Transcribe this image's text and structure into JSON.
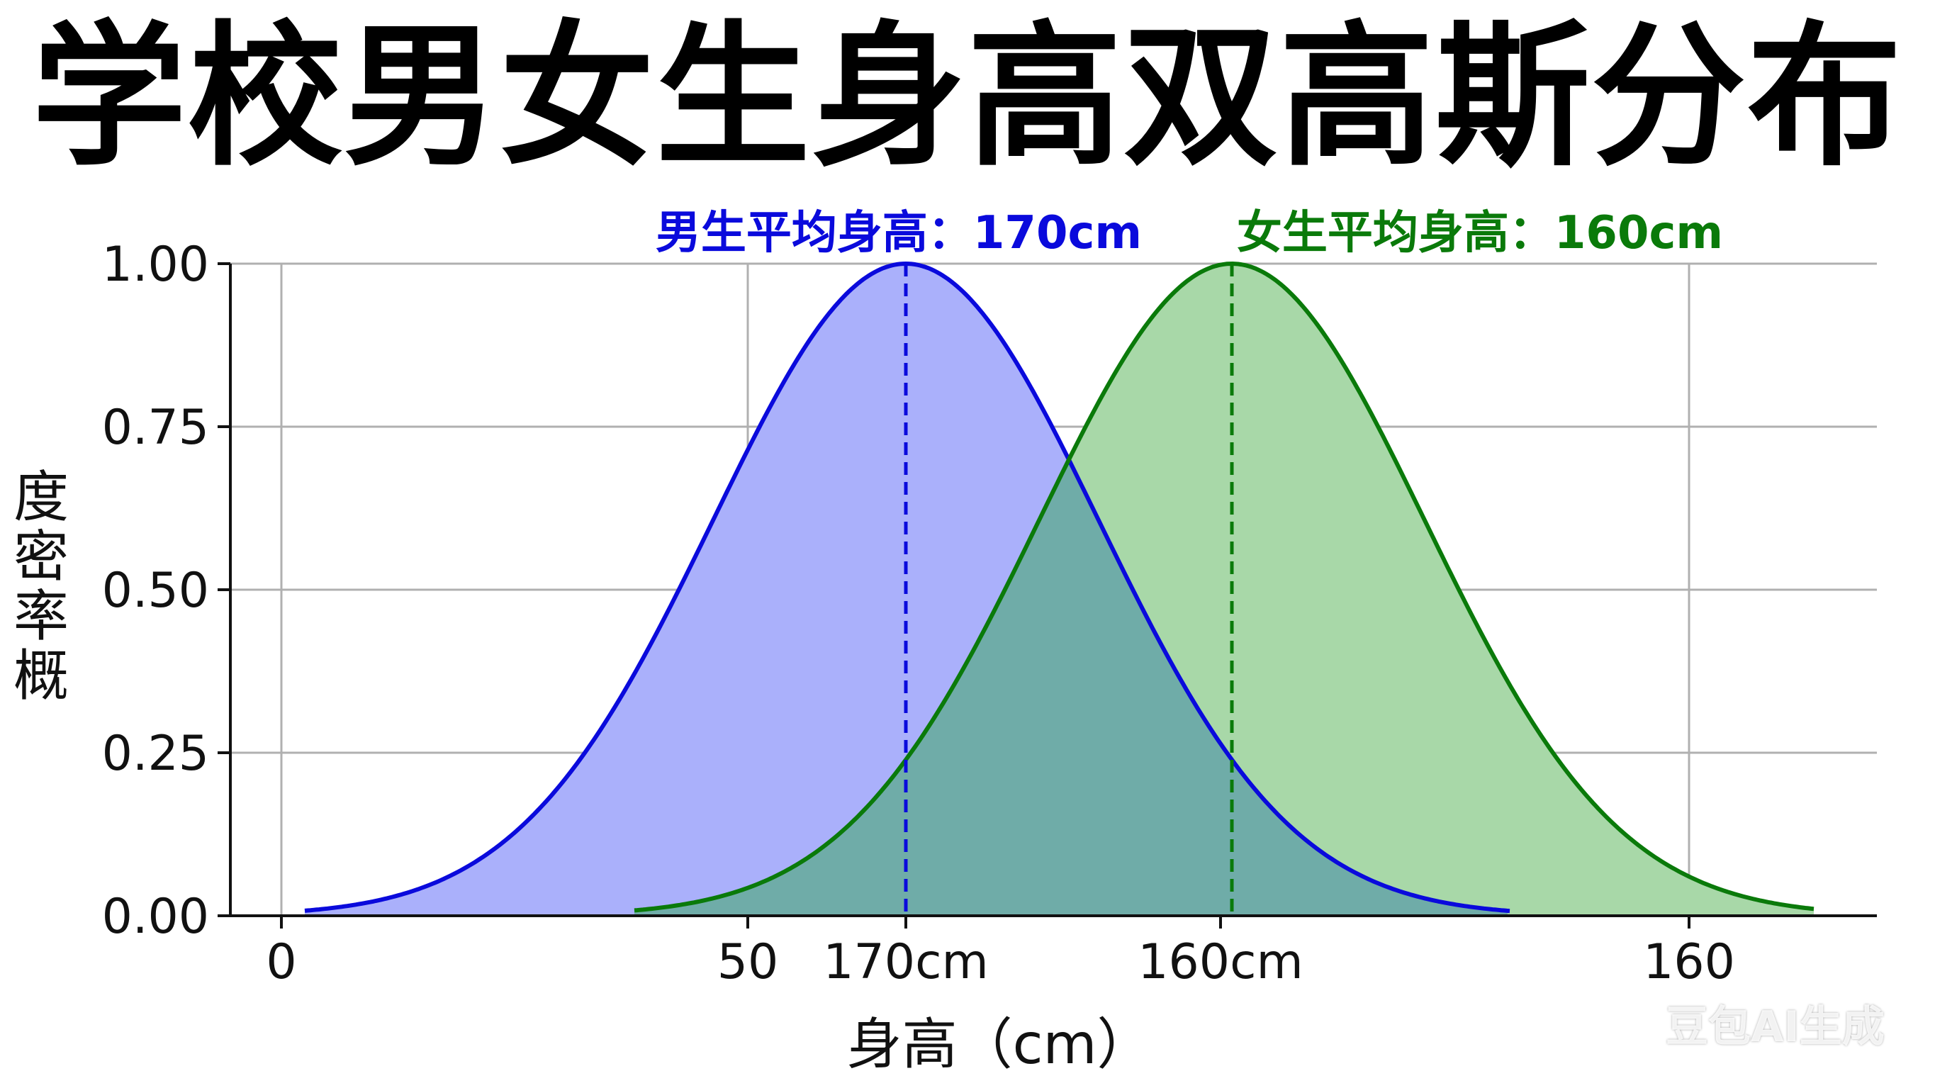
{
  "title": "学校男女生身高双高斯分布",
  "watermark": "豆包AI生成",
  "colors": {
    "male_line": "#0a0adc",
    "male_fill": "#aab0fb",
    "female_line": "#0a7a0a",
    "female_fill": "#a8d8a8",
    "overlap_fill": "#6faca8",
    "grid": "#b0b0b0"
  },
  "chart_data": {
    "type": "area",
    "title": "学校男女生身高双高斯分布",
    "xlabel": "身高（cm）",
    "ylabel": "度密率概",
    "ylim": [
      0,
      1
    ],
    "yticks": [
      "0.00",
      "0.25",
      "0.50",
      "0.75",
      "1.00"
    ],
    "xtick_labels": [
      "0",
      "50",
      "170cm",
      "160cm",
      "160"
    ],
    "grid": true,
    "series": [
      {
        "name": "男生",
        "annotation": "男生平均身高：170cm",
        "mean_label": "170cm",
        "peak": 1.0,
        "color": "#0a0adc"
      },
      {
        "name": "女生",
        "annotation": "女生平均身高：160cm",
        "mean_label": "160cm",
        "peak": 1.0,
        "color": "#0a7a0a"
      }
    ]
  }
}
